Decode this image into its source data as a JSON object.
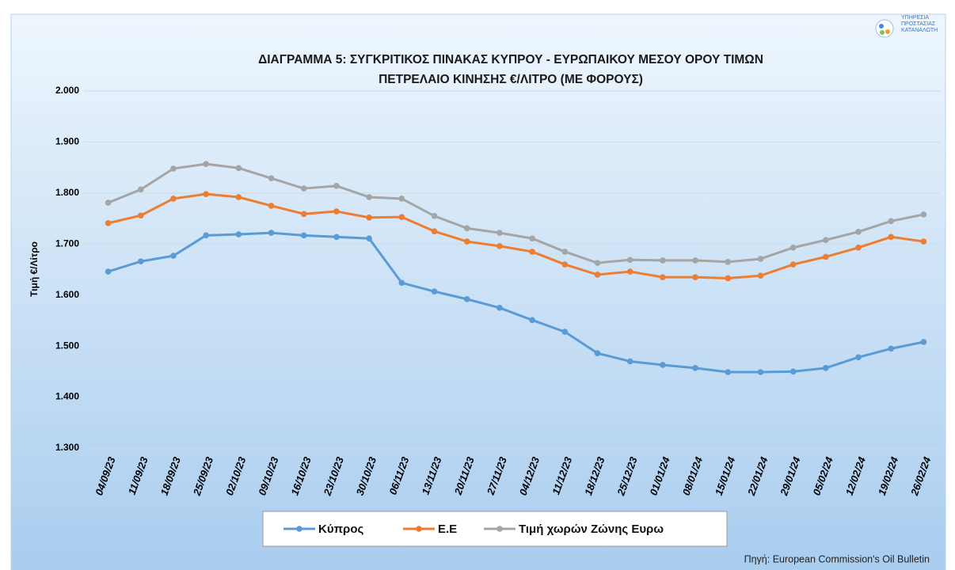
{
  "logo": [
    "ΥΠΗΡΕΣΙΑ",
    "ΠΡΟΣΤΑΣΙΑΣ",
    "ΚΑΤΑΝΑΛΩΤΗ"
  ],
  "source": "Πηγή: European Commission's Oil Bulletin",
  "chart_data": {
    "type": "line",
    "title": [
      "ΔΙΑΓΡΑΜΜΑ 5: ΣΥΓΚΡΙΤΙΚΟΣ ΠΙΝΑΚΑΣ ΚΥΠΡΟΥ - ΕΥΡΩΠΑΙΚΟΥ ΜΕΣΟΥ ΟΡΟΥ ΤΙΜΩΝ",
      "ΠΕΤΡΕΛΑΙΟ ΚΙΝΗΣΗΣ €/ΛΙΤΡΟ (ΜΕ ΦΟΡΟΥΣ)"
    ],
    "y_label": "Τιμή €/Λίτρο",
    "categories": [
      "04/09/23",
      "11/09/23",
      "18/09/23",
      "25/09/23",
      "02/10/23",
      "09/10/23",
      "16/10/23",
      "23/10/23",
      "30/10/23",
      "06/11/23",
      "13/11/23",
      "20/11/23",
      "27/11/23",
      "04/12/23",
      "11/12/23",
      "18/12/23",
      "25/12/23",
      "01/01/24",
      "08/01/24",
      "15/01/24",
      "22/01/24",
      "29/01/24",
      "05/02/24",
      "12/02/24",
      "19/02/24",
      "26/02/24"
    ],
    "series": [
      {
        "name": "Κύπρος",
        "color": "#5b9bd5",
        "values": [
          1.646,
          1.666,
          1.677,
          1.717,
          1.719,
          1.722,
          1.717,
          1.714,
          1.711,
          1.624,
          1.607,
          1.592,
          1.575,
          1.551,
          1.528,
          1.486,
          1.47,
          1.463,
          1.457,
          1.449,
          1.449,
          1.45,
          1.457,
          1.478,
          1.495,
          1.508
        ]
      },
      {
        "name": "Ε.Ε",
        "color": "#ed7d31",
        "values": [
          1.741,
          1.756,
          1.789,
          1.798,
          1.792,
          1.775,
          1.759,
          1.764,
          1.752,
          1.753,
          1.725,
          1.705,
          1.696,
          1.685,
          1.66,
          1.64,
          1.646,
          1.635,
          1.635,
          1.633,
          1.638,
          1.66,
          1.675,
          1.693,
          1.714,
          1.705
        ]
      },
      {
        "name": "Τιμή χωρών Ζώνης Ευρω",
        "color": "#a5a5a5",
        "values": [
          1.781,
          1.807,
          1.848,
          1.857,
          1.849,
          1.829,
          1.809,
          1.814,
          1.792,
          1.789,
          1.755,
          1.731,
          1.722,
          1.711,
          1.685,
          1.663,
          1.669,
          1.668,
          1.668,
          1.665,
          1.671,
          1.693,
          1.708,
          1.724,
          1.745,
          1.758
        ]
      }
    ],
    "ylim": [
      1.3,
      2.0
    ],
    "yticks": [
      {
        "value": 1.3,
        "label": "1.300"
      },
      {
        "value": 1.4,
        "label": "1.400"
      },
      {
        "value": 1.5,
        "label": "1.500"
      },
      {
        "value": 1.6,
        "label": "1.600"
      },
      {
        "value": 1.7,
        "label": "1.700"
      },
      {
        "value": 1.8,
        "label": "1.800"
      },
      {
        "value": 1.9,
        "label": "1.900"
      },
      {
        "value": 2.0,
        "label": "2.000"
      }
    ],
    "grid": true,
    "legend": "bottom"
  }
}
